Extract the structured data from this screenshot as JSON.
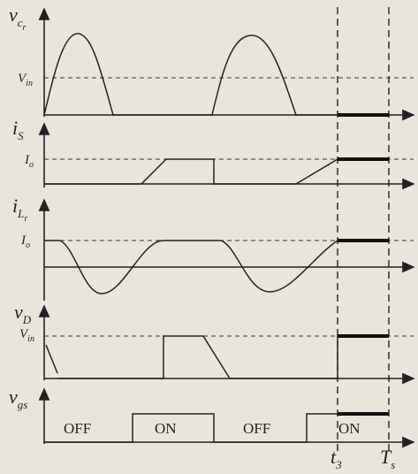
{
  "panels": [
    {
      "symbol": "v",
      "sub": "c",
      "subsub": "r",
      "level": {
        "symbol": "V",
        "sub": "in"
      }
    },
    {
      "symbol": "i",
      "sub": "S",
      "level": {
        "symbol": "I",
        "sub": "o"
      }
    },
    {
      "symbol": "i",
      "sub": "L",
      "subsub": "r",
      "level": {
        "symbol": "I",
        "sub": "o"
      }
    },
    {
      "symbol": "v",
      "sub": "D",
      "level": {
        "symbol": "V",
        "sub": "in"
      }
    },
    {
      "symbol": "v",
      "sub": "gs"
    }
  ],
  "gate_states": [
    "OFF",
    "ON",
    "OFF",
    "ON"
  ],
  "time_marks": [
    {
      "symbol": "t",
      "sub": "3"
    },
    {
      "symbol": "T",
      "sub": "s"
    }
  ]
}
